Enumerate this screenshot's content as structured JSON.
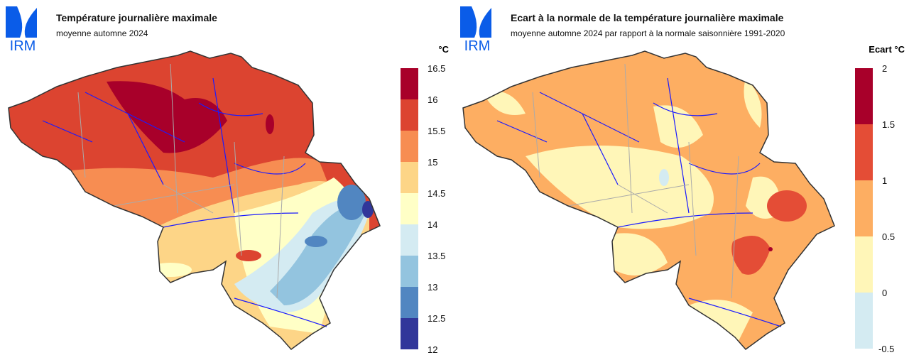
{
  "left": {
    "logo_text": "IRM",
    "title": "Température journalière maximale",
    "subtitle": "moyenne automne 2024",
    "unit": "°C",
    "legend": {
      "labels": [
        "16.5",
        "16",
        "15.5",
        "15",
        "14.5",
        "14",
        "13.5",
        "13",
        "12.5",
        "12"
      ],
      "colors": [
        "#a8002a",
        "#dc4430",
        "#f78d52",
        "#fdd587",
        "#ffffc6",
        "#d4ebf2",
        "#93c4df",
        "#5186c1",
        "#31369a"
      ]
    }
  },
  "right": {
    "logo_text": "IRM",
    "title": "Ecart à la normale de la température journalière maximale",
    "subtitle": "moyenne automne 2024 par rapport à la normale saisonnière 1991-2020",
    "unit": "Ecart °C",
    "legend": {
      "labels": [
        "2",
        "1.5",
        "1",
        "0.5",
        "0",
        "-0.5"
      ],
      "colors": [
        "#a8002a",
        "#e44d36",
        "#fdae62",
        "#fff6b8",
        "#d4ebf2"
      ]
    }
  }
}
